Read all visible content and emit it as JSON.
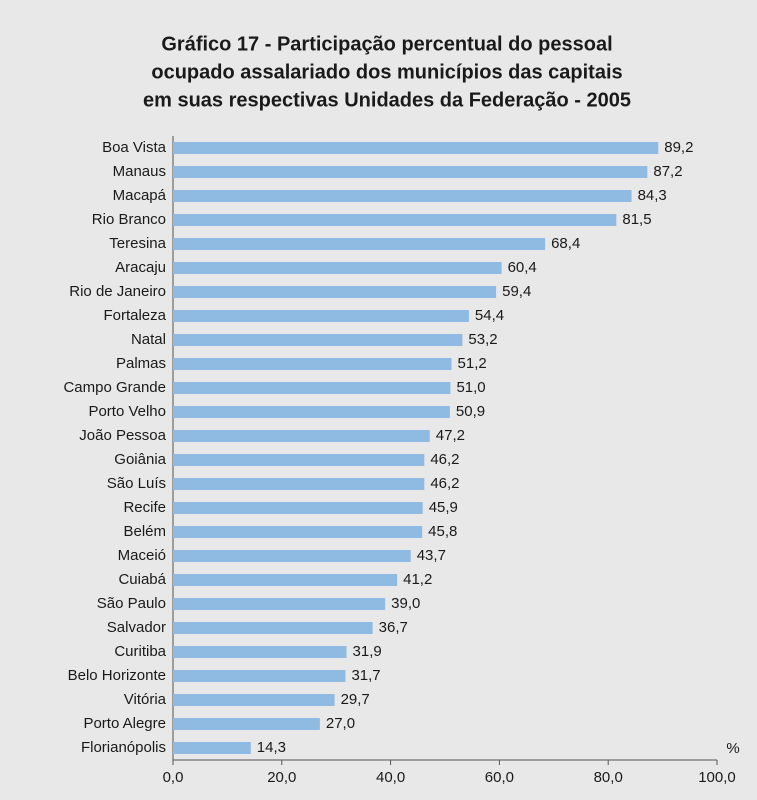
{
  "chart_data": {
    "type": "bar",
    "orientation": "horizontal",
    "title": [
      "Gráfico 17 - Participação percentual do pessoal",
      "ocupado assalariado dos municípios das capitais",
      "em suas respectivas Unidades da Federação - 2005"
    ],
    "xlabel": "%",
    "categories": [
      "Boa Vista",
      "Manaus",
      "Macapá",
      "Rio Branco",
      "Teresina",
      "Aracaju",
      "Rio de Janeiro",
      "Fortaleza",
      "Natal",
      "Palmas",
      "Campo Grande",
      "Porto Velho",
      "João Pessoa",
      "Goiânia",
      "São Luís",
      "Recife",
      "Belém",
      "Maceió",
      "Cuiabá",
      "São Paulo",
      "Salvador",
      "Curitiba",
      "Belo Horizonte",
      "Vitória",
      "Porto Alegre",
      "Florianópolis"
    ],
    "values": [
      89.2,
      87.2,
      84.3,
      81.5,
      68.4,
      60.4,
      59.4,
      54.4,
      53.2,
      51.2,
      51.0,
      50.9,
      47.2,
      46.2,
      46.2,
      45.9,
      45.8,
      43.7,
      41.2,
      39.0,
      36.7,
      31.9,
      31.7,
      29.7,
      27.0,
      14.3
    ],
    "value_labels": [
      "89,2",
      "87,2",
      "84,3",
      "81,5",
      "68,4",
      "60,4",
      "59,4",
      "54,4",
      "53,2",
      "51,2",
      "51,0",
      "50,9",
      "47,2",
      "46,2",
      "46,2",
      "45,9",
      "45,8",
      "43,7",
      "41,2",
      "39,0",
      "36,7",
      "31,9",
      "31,7",
      "29,7",
      "27,0",
      "14,3"
    ],
    "color": "#8fbbe3",
    "xlim": [
      0,
      100
    ],
    "xticks": [
      {
        "value": 0,
        "label": "0,0"
      },
      {
        "value": 20,
        "label": "20,0"
      },
      {
        "value": 40,
        "label": "40,0"
      },
      {
        "value": 60,
        "label": "60,0"
      },
      {
        "value": 80,
        "label": "80,0"
      },
      {
        "value": 100,
        "label": "100,0"
      }
    ],
    "grid": false
  }
}
